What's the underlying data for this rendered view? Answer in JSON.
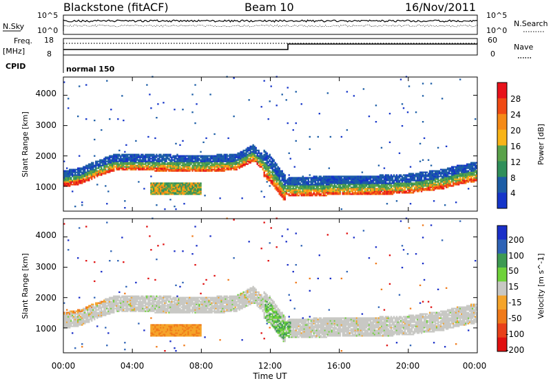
{
  "header": {
    "radar": "Blackstone (fitACF)",
    "beam": "Beam 10",
    "date": "16/Nov/2011"
  },
  "strips": {
    "nsky_label": "N.Sky",
    "nsearch_label": "N.Search",
    "nsky_ticks": [
      "10^5",
      "10^0"
    ],
    "nsearch_ticks": [
      "10^5",
      "10^0"
    ],
    "freq_label_line1": "Freq.",
    "freq_label_line2": "[MHz]",
    "freq_ticks": [
      "18",
      "8"
    ],
    "nave_label": "Nave",
    "nave_ticks": [
      "60",
      "0"
    ],
    "cpid_label": "CPID",
    "cpid_value": "normal 150"
  },
  "panels": {
    "ylabel": "Slant Range [km]",
    "yticks": [
      "4000",
      "3000",
      "2000",
      "1000"
    ],
    "xlabel": "Time UT",
    "xticks": [
      "00:00",
      "04:00",
      "08:00",
      "12:00",
      "16:00",
      "20:00",
      "00:00"
    ]
  },
  "power_scale": {
    "label": "Power [dB]",
    "ticks": [
      "28",
      "24",
      "20",
      "16",
      "12",
      "8",
      "4"
    ],
    "colors": [
      "#e8121b",
      "#f04a14",
      "#f58a17",
      "#f8b418",
      "#5aa24a",
      "#2f8f5a",
      "#1c5da6",
      "#1535c9"
    ]
  },
  "velocity_scale": {
    "label": "Velocity [m s^-1]",
    "ticks": [
      "200",
      "100",
      "50",
      "15",
      "-15",
      "-50",
      "-100",
      "-200"
    ],
    "colors": [
      "#1a2fc8",
      "#2e63b6",
      "#3d9a52",
      "#6fd23a",
      "#c8c8c4",
      "#f5a42a",
      "#f07a1a",
      "#e8401a",
      "#e01010"
    ]
  },
  "chart_data": [
    {
      "type": "heatmap",
      "title": "Power [dB]",
      "xlabel": "Time UT",
      "ylabel": "Slant Range [km]",
      "x_range_hours": [
        0,
        24
      ],
      "y_range_km": [
        180,
        4600
      ],
      "colorbar_range_db": [
        0,
        32
      ],
      "main_band": {
        "time_h": [
          0,
          1,
          2,
          3,
          4,
          6,
          8,
          10,
          11,
          12,
          12.8,
          14,
          16,
          18,
          20,
          22,
          23,
          24
        ],
        "center_range_km": [
          1250,
          1350,
          1600,
          1800,
          1800,
          1780,
          1760,
          1800,
          2100,
          1600,
          1000,
          1000,
          1050,
          1050,
          1100,
          1250,
          1400,
          1500
        ]
      },
      "secondary_patch": {
        "time_h": [
          5,
          8
        ],
        "range_km": [
          700,
          1100
        ]
      }
    },
    {
      "type": "heatmap",
      "title": "Velocity [m s^-1]",
      "xlabel": "Time UT",
      "ylabel": "Slant Range [km]",
      "x_range_hours": [
        0,
        24
      ],
      "y_range_km": [
        180,
        4600
      ],
      "colorbar_range_ms": [
        -250,
        250
      ],
      "features": [
        {
          "description": "mostly near-zero (ground scatter grey) along main band"
        },
        {
          "time_h": [
            5,
            8
          ],
          "range_km": [
            700,
            1100
          ],
          "velocity": "-50 to -100"
        },
        {
          "time_h": [
            11.7,
            13
          ],
          "range_km": [
            800,
            1800
          ],
          "velocity": "15 to 50"
        }
      ]
    }
  ]
}
